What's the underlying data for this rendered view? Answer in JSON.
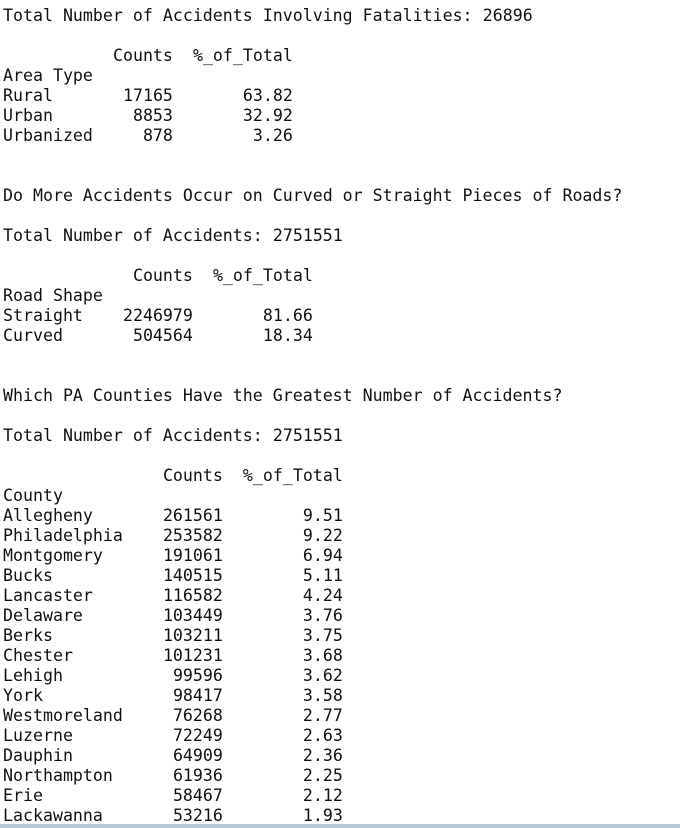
{
  "sections": [
    {
      "total_label": "Total Number of Accidents Involving Fatalities:",
      "total": 26896,
      "table": {
        "columns": [
          "Counts",
          "%_of_Total"
        ],
        "index_name": "Area Type",
        "rows": [
          [
            "Rural",
            17165,
            63.82
          ],
          [
            "Urban",
            8853,
            32.92
          ],
          [
            "Urbanized",
            878,
            3.26
          ]
        ]
      }
    },
    {
      "question": "Do More Accidents Occur on Curved or Straight Pieces of Roads?",
      "total_label": "Total Number of Accidents:",
      "total": 2751551,
      "table": {
        "columns": [
          "Counts",
          "%_of_Total"
        ],
        "index_name": "Road Shape",
        "rows": [
          [
            "Straight",
            2246979,
            81.66
          ],
          [
            "Curved",
            504564,
            18.34
          ]
        ]
      }
    },
    {
      "question": "Which PA Counties Have the Greatest Number of Accidents?",
      "total_label": "Total Number of Accidents:",
      "total": 2751551,
      "table": {
        "columns": [
          "Counts",
          "%_of_Total"
        ],
        "index_name": "County",
        "rows": [
          [
            "Allegheny",
            261561,
            9.51
          ],
          [
            "Philadelphia",
            253582,
            9.22
          ],
          [
            "Montgomery",
            191061,
            6.94
          ],
          [
            "Bucks",
            140515,
            5.11
          ],
          [
            "Lancaster",
            116582,
            4.24
          ],
          [
            "Delaware",
            103449,
            3.76
          ],
          [
            "Berks",
            103211,
            3.75
          ],
          [
            "Chester",
            101231,
            3.68
          ],
          [
            "Lehigh",
            99596,
            3.62
          ],
          [
            "York",
            98417,
            3.58
          ],
          [
            "Westmoreland",
            76268,
            2.77
          ],
          [
            "Luzerne",
            72249,
            2.63
          ],
          [
            "Dauphin",
            64909,
            2.36
          ],
          [
            "Northampton",
            61936,
            2.25
          ],
          [
            "Erie",
            58467,
            2.12
          ],
          [
            "Lackawanna",
            53216,
            1.93
          ]
        ]
      }
    }
  ]
}
